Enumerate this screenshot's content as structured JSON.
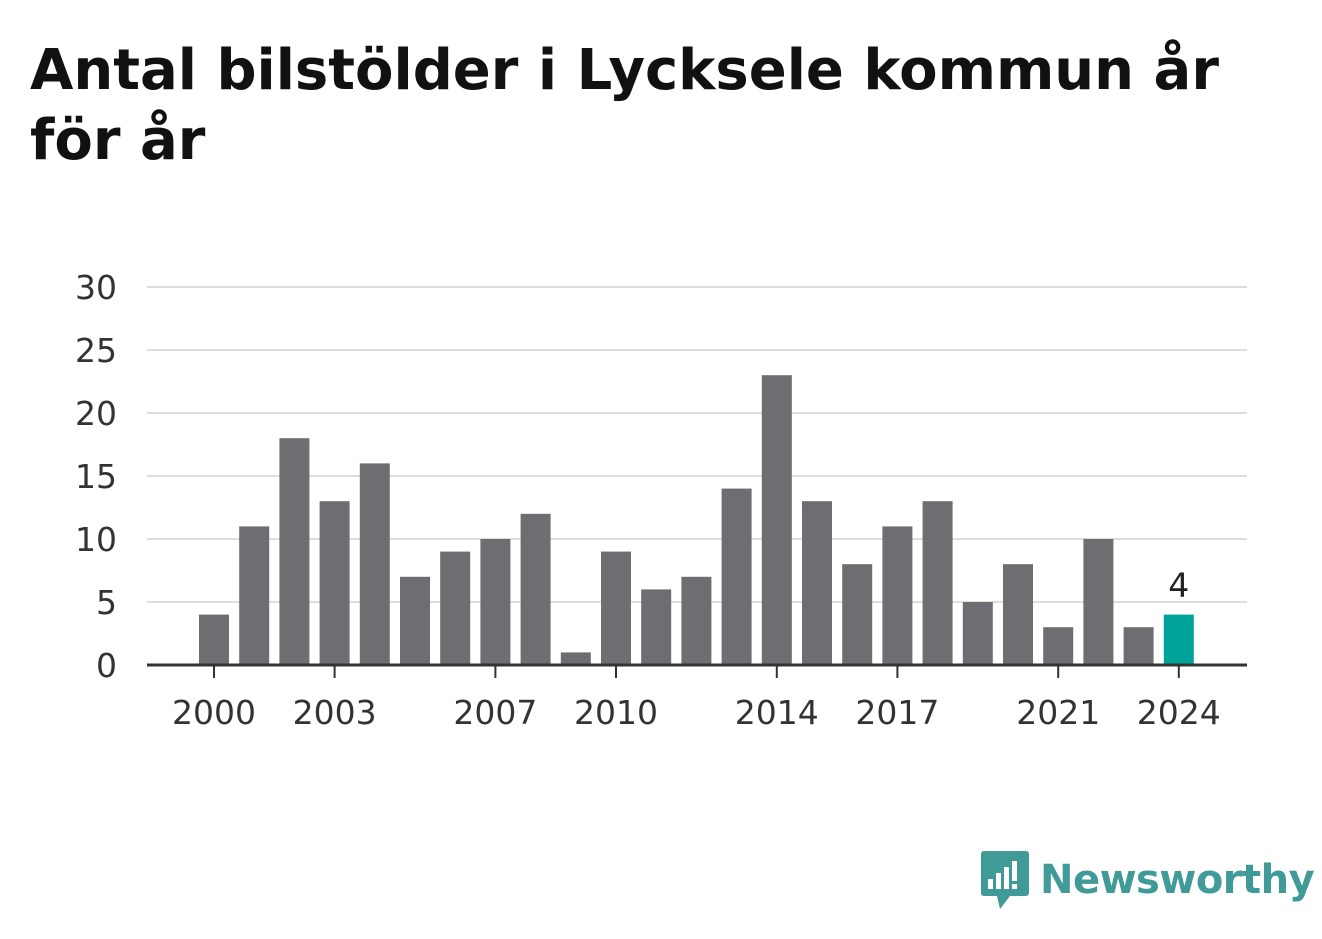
{
  "title": "Antal bilstölder i Lycksele kommun år för år",
  "brand": {
    "name": "Newsworthy",
    "color": "#3f9a98"
  },
  "chart_data": {
    "type": "bar",
    "categories": [
      "2000",
      "2001",
      "2002",
      "2003",
      "2004",
      "2005",
      "2006",
      "2007",
      "2008",
      "2009",
      "2010",
      "2011",
      "2012",
      "2013",
      "2014",
      "2015",
      "2016",
      "2017",
      "2018",
      "2019",
      "2020",
      "2021",
      "2022",
      "2023",
      "2024"
    ],
    "values": [
      4,
      11,
      18,
      13,
      16,
      7,
      9,
      10,
      12,
      1,
      9,
      6,
      7,
      14,
      23,
      13,
      8,
      11,
      13,
      5,
      8,
      3,
      10,
      3,
      4
    ],
    "x_tick_labels": [
      "2000",
      "2003",
      "2007",
      "2010",
      "2014",
      "2017",
      "2021",
      "2024"
    ],
    "y_ticks": [
      0,
      5,
      10,
      15,
      20,
      25,
      30
    ],
    "ylim": [
      0,
      30
    ],
    "title": "Antal bilstölder i Lycksele kommun år för år",
    "xlabel": "",
    "ylabel": "",
    "grid": true,
    "highlight": {
      "category": "2024",
      "label": "4"
    },
    "colors": {
      "bar": "#6e6d72",
      "highlight": "#00a39a",
      "grid": "#dddddd",
      "axis": "#333333"
    }
  }
}
